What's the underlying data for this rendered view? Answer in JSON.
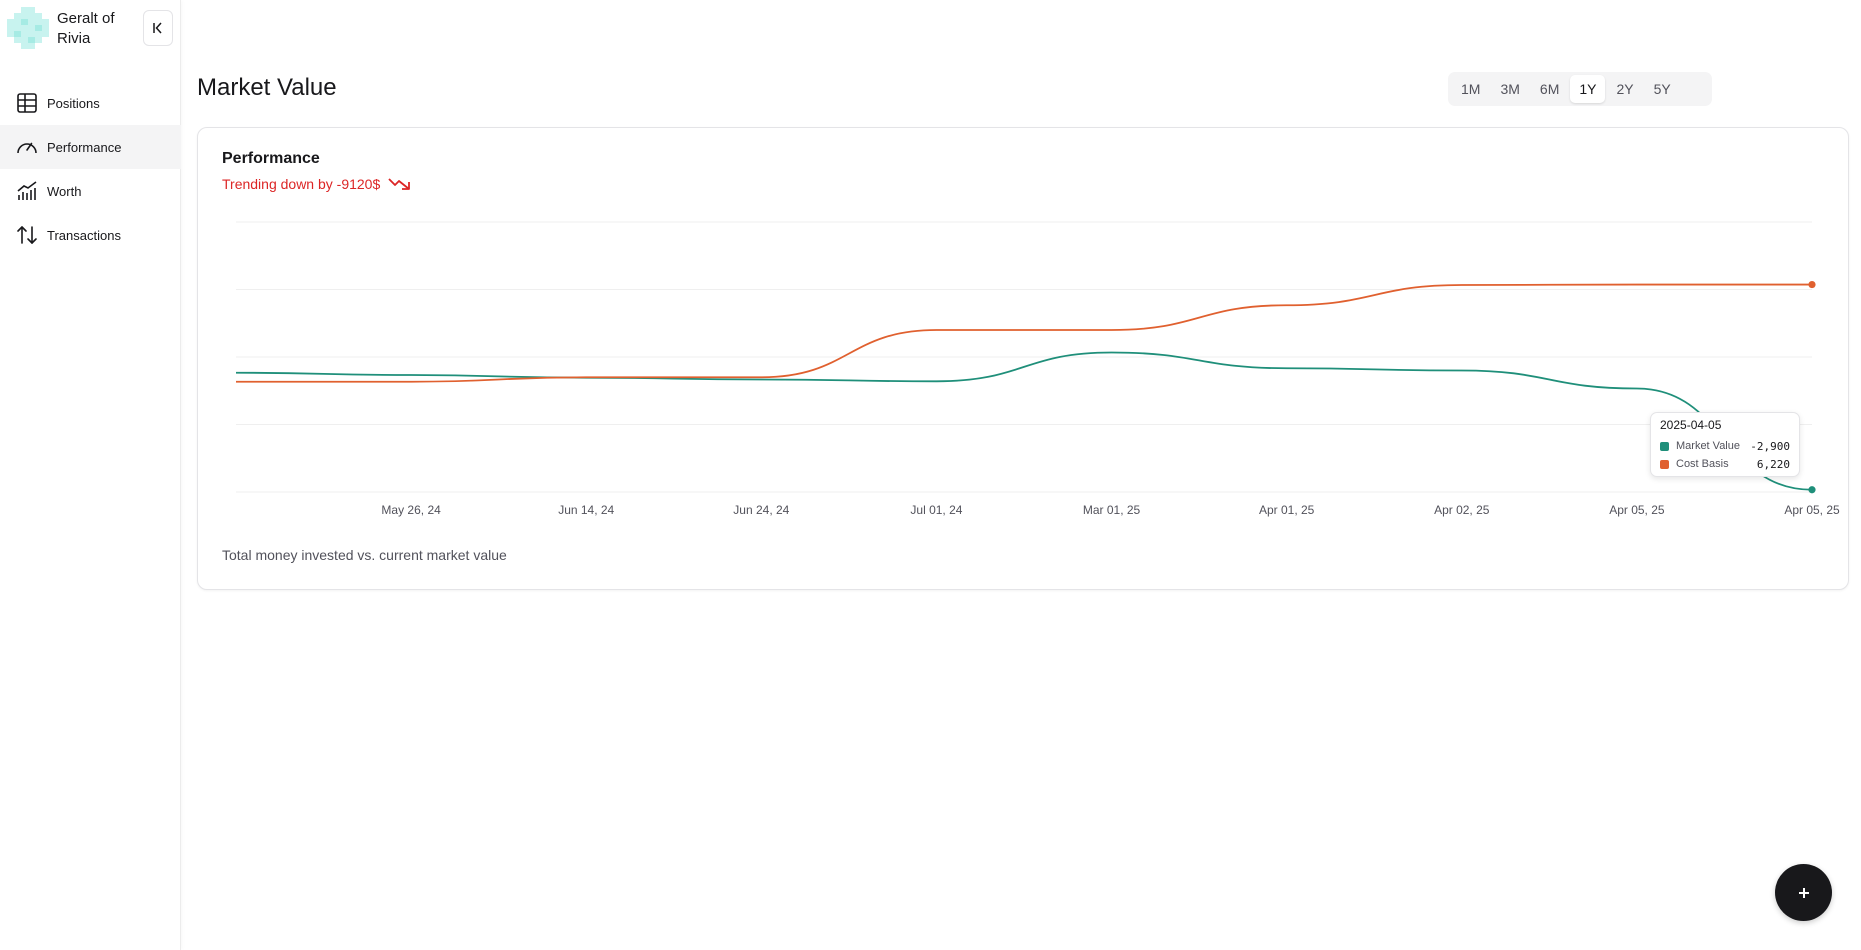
{
  "profile": {
    "name": "Geralt of Rivia"
  },
  "sidebar": {
    "items": [
      {
        "label": "Positions",
        "icon": "table-icon"
      },
      {
        "label": "Performance",
        "icon": "gauge-icon",
        "active": true
      },
      {
        "label": "Worth",
        "icon": "chart-icon"
      },
      {
        "label": "Transactions",
        "icon": "arrows-up-down-icon"
      }
    ]
  },
  "header": {
    "title": "Market Value"
  },
  "ranges": {
    "options": [
      "1M",
      "3M",
      "6M",
      "1Y",
      "2Y",
      "5Y"
    ],
    "selected": "1Y"
  },
  "card": {
    "title": "Performance",
    "trend": "Trending down by -9120$",
    "footer": "Total money invested vs. current market value"
  },
  "tooltip": {
    "date": "2025-04-05",
    "rows": [
      {
        "name": "Market Value",
        "value": "-2,900"
      },
      {
        "name": "Cost Basis",
        "value": "6,220"
      }
    ]
  },
  "colors": {
    "market_value": "#1f8f7a",
    "cost_basis": "#e0602f",
    "trend_down": "#dc2626",
    "accent": "#18181b"
  },
  "chart_data": {
    "type": "line",
    "categories": [
      "",
      "May 26, 24",
      "Jun 14, 24",
      "Jun 24, 24",
      "Jul 01, 24",
      "Mar 01, 25",
      "Apr 01, 25",
      "Apr 02, 25",
      "Apr 05, 25",
      "Apr 05, 25"
    ],
    "series": [
      {
        "name": "Market Value",
        "values": [
          2300,
          2200,
          2080,
          2000,
          1920,
          3200,
          2500,
          2400,
          1600,
          -2900
        ]
      },
      {
        "name": "Cost Basis",
        "values": [
          1900,
          1900,
          2100,
          2100,
          4200,
          4200,
          5300,
          6200,
          6220,
          6220
        ]
      }
    ],
    "ylim": [
      -3000,
      9000
    ],
    "grid": true,
    "legend": "none"
  }
}
